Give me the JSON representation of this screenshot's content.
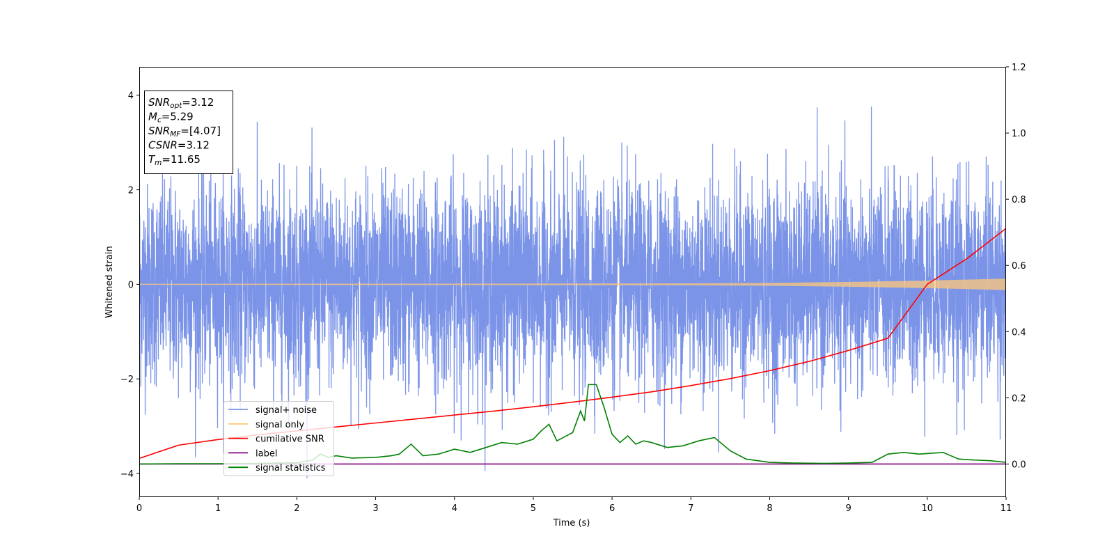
{
  "chart_data": {
    "type": "line",
    "xlabel": "Time (s)",
    "ylabel": "Whitened strain",
    "xlim": [
      0,
      11
    ],
    "ylim_left": [
      -4.5,
      4.6
    ],
    "ylim_right": [
      -0.1,
      1.2
    ],
    "x_ticks": [
      "0",
      "1",
      "2",
      "3",
      "4",
      "5",
      "6",
      "7",
      "8",
      "9",
      "10",
      "11"
    ],
    "y_ticks_left": [
      "−4",
      "−2",
      "0",
      "2",
      "4"
    ],
    "y_ticks_right": [
      "0.0",
      "0.2",
      "0.4",
      "0.6",
      "0.8",
      "1.0",
      "1.2"
    ],
    "grid": false,
    "legend_position": "lower-left",
    "info_box": [
      {
        "main": "SNR",
        "sub": "opt",
        "rest": "=3.12"
      },
      {
        "main": "M",
        "sub": "c",
        "rest": "=5.29"
      },
      {
        "main": "SNR",
        "sub": "MF",
        "rest": "=[4.07]"
      },
      {
        "main": "CSNR",
        "sub": "",
        "rest": "=3.12"
      },
      {
        "main": "T",
        "sub": "m",
        "rest": "=11.65"
      }
    ],
    "series": [
      {
        "name": "signal+ noise",
        "color": "#7b94e8",
        "axis": "left",
        "style": "noise",
        "noise_std": 1.0,
        "approx_range": [
          -4.1,
          4.2
        ]
      },
      {
        "name": "signal only",
        "color": "#ffc87a",
        "axis": "left",
        "style": "chirp",
        "envelope_x": [
          0,
          5,
          7,
          8,
          9,
          10,
          11
        ],
        "envelope_amp": [
          0.01,
          0.015,
          0.02,
          0.03,
          0.05,
          0.08,
          0.12
        ]
      },
      {
        "name": "cumilative SNR",
        "color": "#ff0000",
        "axis": "right",
        "x": [
          0,
          0.5,
          1,
          1.5,
          2,
          2.5,
          3,
          3.5,
          4,
          4.5,
          5,
          5.5,
          6,
          6.5,
          7,
          7.5,
          8,
          8.5,
          9,
          9.5,
          10,
          10.5,
          11
        ],
        "y": [
          0.017,
          0.057,
          0.074,
          0.088,
          0.1,
          0.112,
          0.124,
          0.136,
          0.148,
          0.16,
          0.173,
          0.187,
          0.202,
          0.218,
          0.237,
          0.258,
          0.282,
          0.31,
          0.343,
          0.38,
          0.543,
          0.62,
          0.712
        ]
      },
      {
        "name": "label",
        "color": "#800080",
        "axis": "right",
        "x": [
          0,
          11
        ],
        "y": [
          0.0,
          0.0
        ]
      },
      {
        "name": "signal statistics",
        "color": "#008000",
        "axis": "right",
        "x": [
          0,
          0.5,
          1,
          1.5,
          2,
          2.2,
          2.3,
          2.4,
          2.5,
          2.7,
          3,
          3.2,
          3.3,
          3.45,
          3.6,
          3.8,
          4,
          4.2,
          4.4,
          4.6,
          4.8,
          5,
          5.1,
          5.2,
          5.3,
          5.5,
          5.6,
          5.65,
          5.7,
          5.8,
          5.9,
          6,
          6.1,
          6.2,
          6.3,
          6.4,
          6.5,
          6.7,
          6.9,
          7.1,
          7.3,
          7.5,
          7.7,
          8,
          8.3,
          8.7,
          9,
          9.3,
          9.5,
          9.7,
          9.9,
          10.2,
          10.4,
          10.6,
          10.8,
          11
        ],
        "y": [
          0.0,
          0.001,
          0.001,
          0.002,
          0.004,
          0.012,
          0.03,
          0.02,
          0.025,
          0.018,
          0.02,
          0.025,
          0.03,
          0.06,
          0.025,
          0.03,
          0.045,
          0.035,
          0.05,
          0.065,
          0.06,
          0.075,
          0.1,
          0.12,
          0.07,
          0.095,
          0.16,
          0.13,
          0.24,
          0.24,
          0.17,
          0.09,
          0.065,
          0.085,
          0.06,
          0.07,
          0.065,
          0.05,
          0.055,
          0.07,
          0.08,
          0.04,
          0.015,
          0.005,
          0.003,
          0.002,
          0.003,
          0.005,
          0.03,
          0.035,
          0.03,
          0.035,
          0.015,
          0.012,
          0.01,
          0.005
        ]
      }
    ]
  }
}
